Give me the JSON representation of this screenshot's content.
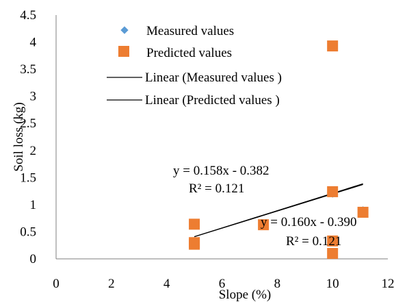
{
  "chart_data": {
    "type": "scatter",
    "xlabel": "Slope  (%)",
    "ylabel": "Soil loss (kg)",
    "xlim": [
      0,
      12
    ],
    "ylim": [
      0,
      4.5
    ],
    "x_ticks": [
      "0",
      "2",
      "4",
      "6",
      "8",
      "10",
      "12"
    ],
    "y_ticks": [
      "0",
      "0.5",
      "1",
      "1.5",
      "2",
      "2.5",
      "3",
      "3.5",
      "4",
      "4.5"
    ],
    "grid": false,
    "legend_position": "top-left",
    "series": [
      {
        "name": "Measured values",
        "marker": "diamond",
        "color": "#5b9bd5",
        "points": [
          [
            5,
            0.65
          ],
          [
            5,
            0.3
          ],
          [
            5,
            0.27
          ],
          [
            7.5,
            0.63
          ],
          [
            10,
            3.92
          ],
          [
            10,
            1.2
          ],
          [
            10,
            0.35
          ],
          [
            10,
            0.12
          ],
          [
            11.1,
            0.9
          ]
        ]
      },
      {
        "name": "Predicted values",
        "marker": "square",
        "color": "#ed7d31",
        "points": [
          [
            5,
            0.64
          ],
          [
            5,
            0.3
          ],
          [
            5,
            0.27
          ],
          [
            7.5,
            0.63
          ],
          [
            10,
            3.93
          ],
          [
            10,
            1.24
          ],
          [
            10,
            0.33
          ],
          [
            10,
            0.1
          ],
          [
            11.1,
            0.86
          ]
        ]
      }
    ],
    "trendlines": [
      {
        "name": "Linear (Measured values )",
        "color": "#000000",
        "slope": 0.158,
        "intercept": -0.382,
        "x_range": [
          5,
          11.1
        ],
        "equation": "y = 0.158x - 0.382",
        "r2": "R² = 0.121"
      },
      {
        "name": "Linear (Predicted values )",
        "color": "#000000",
        "slope": 0.16,
        "intercept": -0.39,
        "x_range": [
          5,
          11.1
        ],
        "equation": "y = 0.160x - 0.390",
        "r2": "R² = 0.121"
      }
    ]
  }
}
